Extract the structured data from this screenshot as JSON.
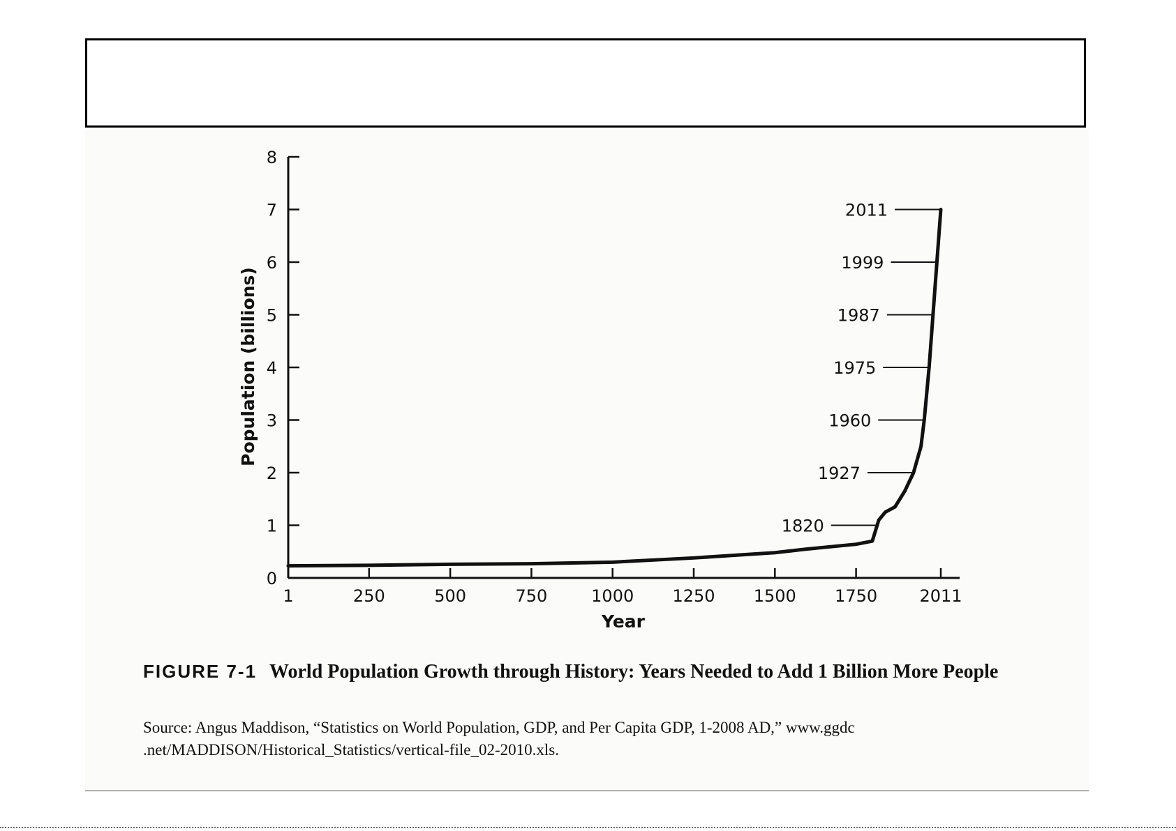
{
  "chart_data": {
    "type": "line",
    "xlabel": "Year",
    "ylabel": "Population (billions)",
    "xlim": [
      1,
      2011
    ],
    "ylim": [
      0,
      8
    ],
    "x_ticks": [
      1,
      250,
      500,
      750,
      1000,
      1250,
      1500,
      1750,
      2011
    ],
    "y_ticks": [
      0,
      1,
      2,
      3,
      4,
      5,
      6,
      7,
      8
    ],
    "series": [
      {
        "x": [
          1,
          250,
          500,
          750,
          1000,
          1250,
          1400,
          1500,
          1600,
          1700,
          1750,
          1800,
          1810,
          1820,
          1840,
          1870,
          1900,
          1927,
          1950,
          1960,
          1975,
          1987,
          1999,
          2011
        ],
        "y": [
          0.23,
          0.24,
          0.26,
          0.27,
          0.3,
          0.38,
          0.44,
          0.48,
          0.55,
          0.61,
          0.64,
          0.7,
          0.9,
          1.1,
          1.25,
          1.35,
          1.65,
          2.0,
          2.5,
          3.0,
          4.0,
          5.0,
          6.0,
          7.0
        ]
      }
    ],
    "annotations": [
      {
        "label": "1820",
        "y": 1.0
      },
      {
        "label": "1927",
        "y": 2.0
      },
      {
        "label": "1960",
        "y": 3.0
      },
      {
        "label": "1975",
        "y": 4.0
      },
      {
        "label": "1987",
        "y": 5.0
      },
      {
        "label": "1999",
        "y": 6.0
      },
      {
        "label": "2011",
        "y": 7.0
      }
    ]
  },
  "caption": {
    "figure_number": "FIGURE 7-1",
    "title": "World Population Growth through History: Years Needed to Add 1 Billion More People"
  },
  "source": "Source: Angus Maddison, “Statistics on World Population, GDP, and Per Capita GDP, 1-2008 AD,” www.ggdc .net/MADDISON/Historical_Statistics/vertical-file_02-2010.xls."
}
